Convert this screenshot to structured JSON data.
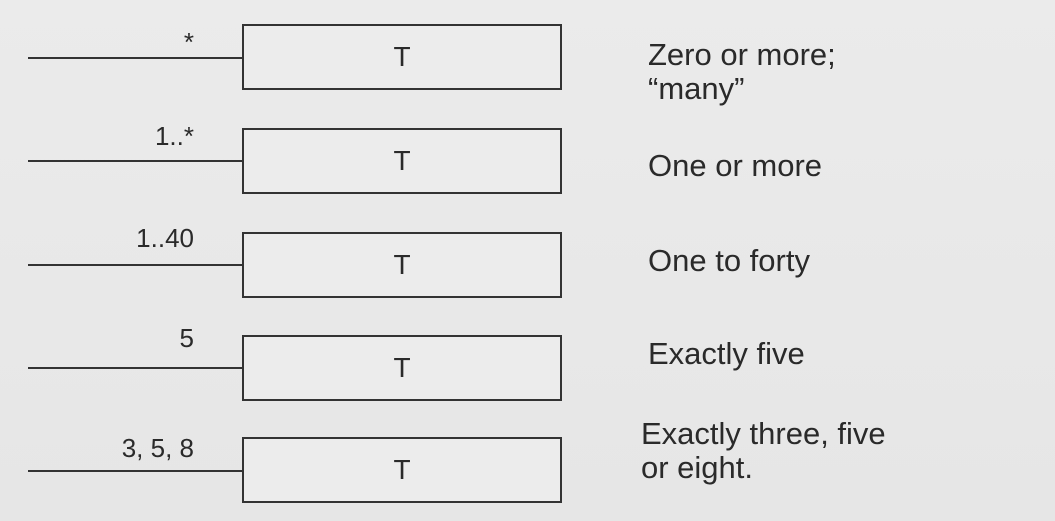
{
  "rows": [
    {
      "multiplicity": "*",
      "class_name": "T",
      "description": [
        "Zero or more;",
        "“many”"
      ]
    },
    {
      "multiplicity": "1..*",
      "class_name": "T",
      "description": [
        "One or more"
      ]
    },
    {
      "multiplicity": "1..40",
      "class_name": "T",
      "description": [
        "One to forty"
      ]
    },
    {
      "multiplicity": "5",
      "class_name": "T",
      "description": [
        "Exactly five"
      ]
    },
    {
      "multiplicity": "3, 5, 8",
      "class_name": "T",
      "description": [
        "Exactly three, five",
        "or eight."
      ]
    }
  ]
}
